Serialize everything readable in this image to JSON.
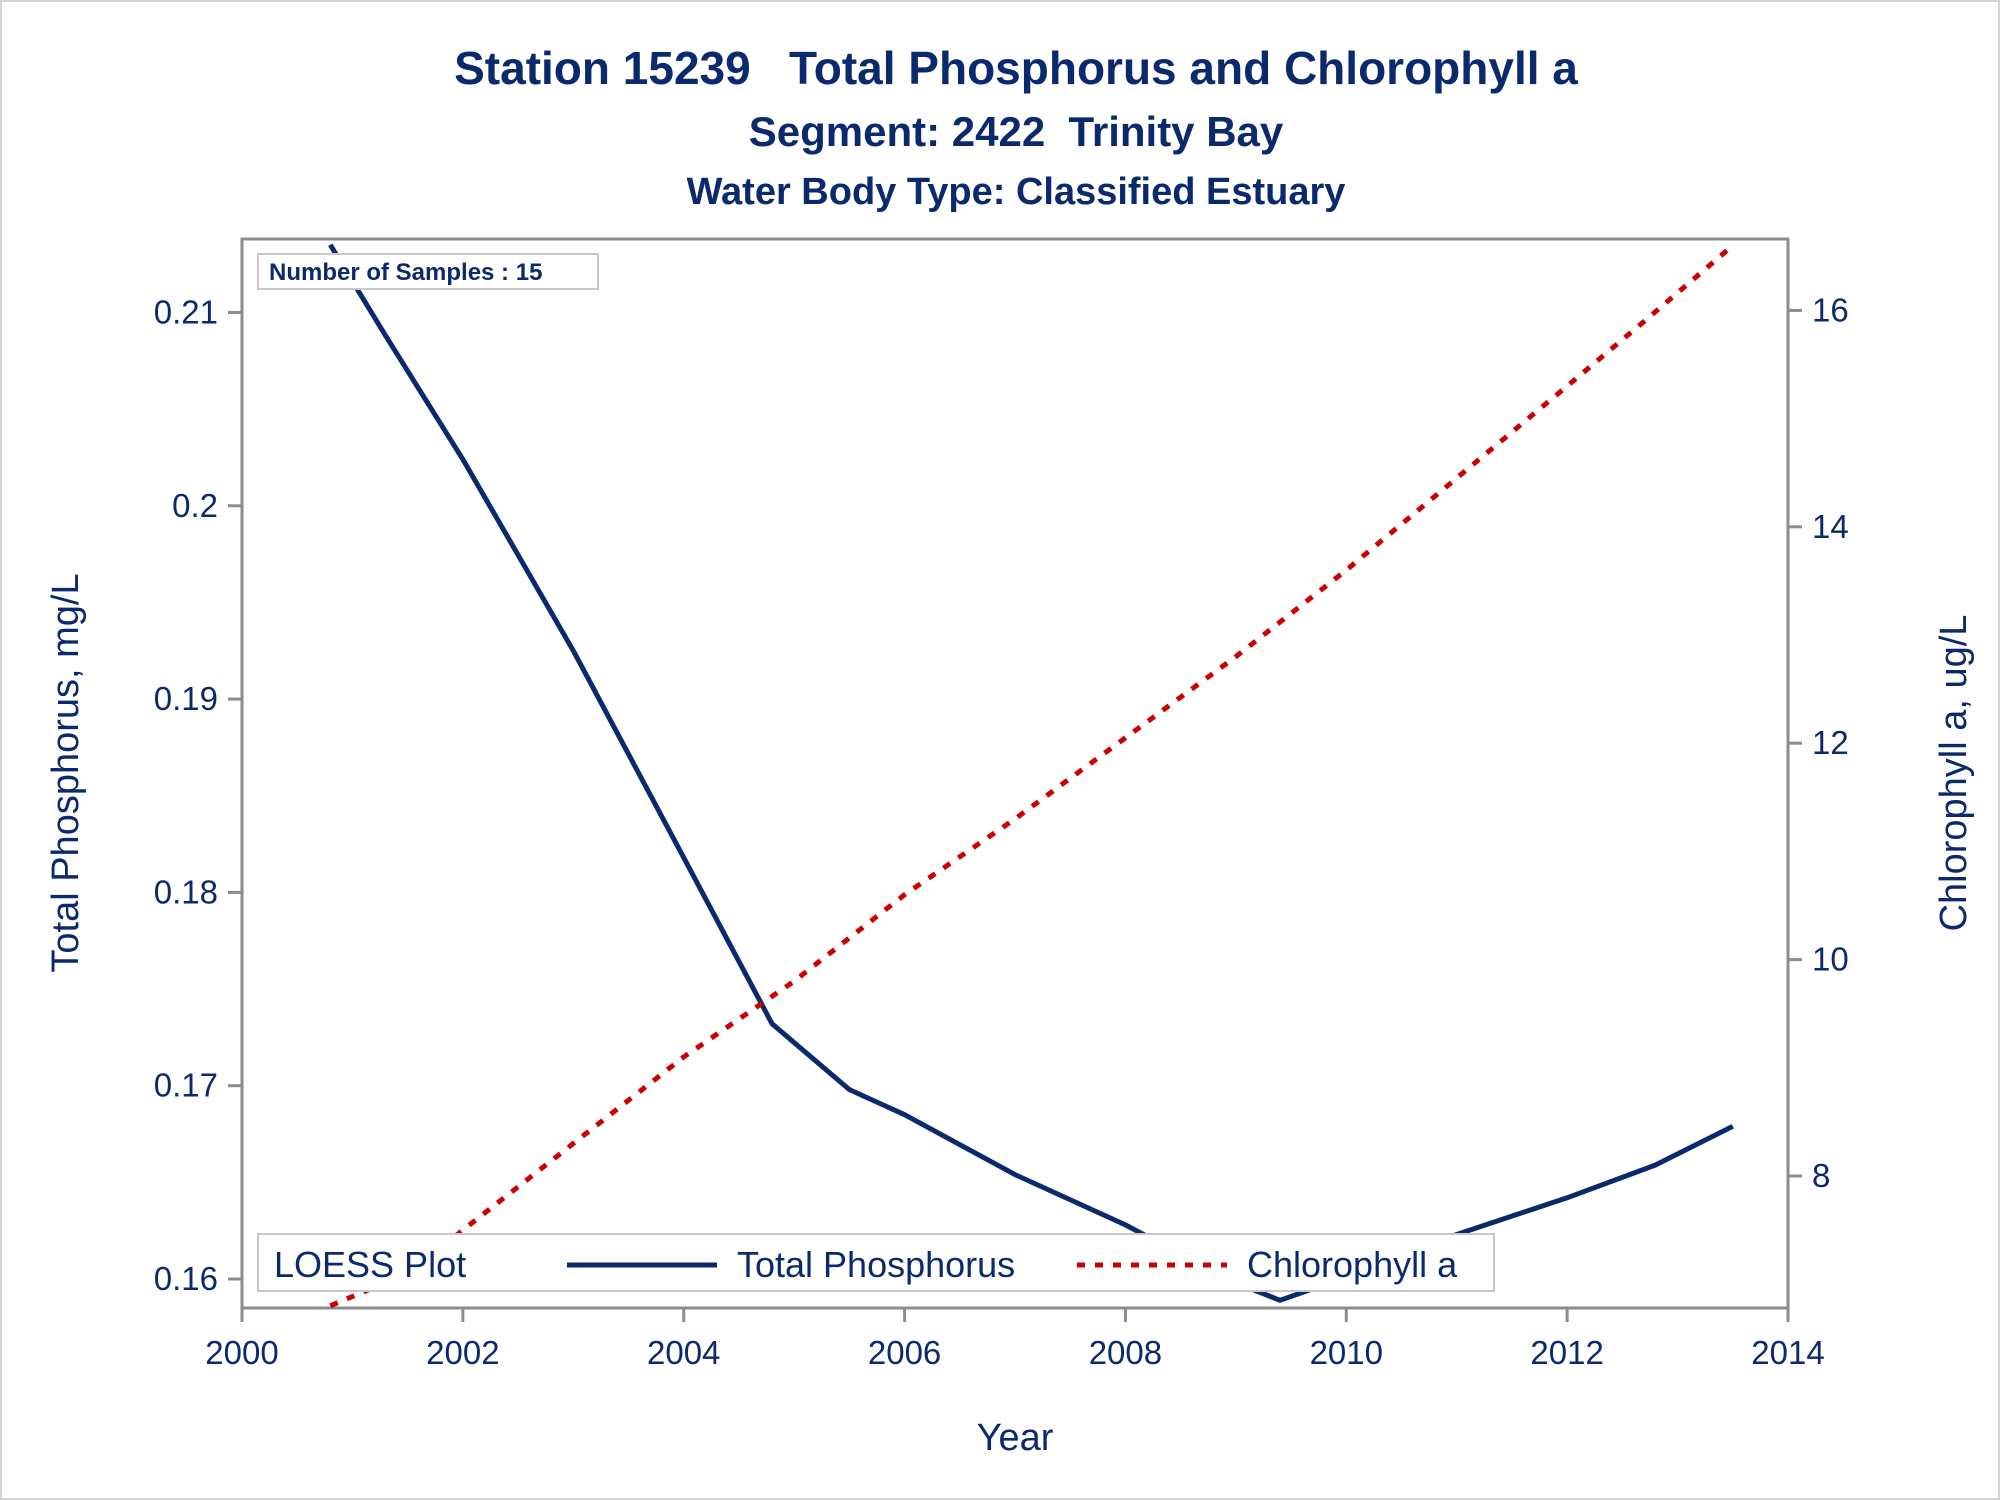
{
  "titles": {
    "line1": "Station 15239   Total Phosphorus and Chlorophyll a",
    "line2": "Segment: 2422  Trinity Bay",
    "line3": "Water Body Type: Classified Estuary"
  },
  "inset": {
    "samples_label": "Number of Samples : 15"
  },
  "legend": {
    "title": "LOESS Plot",
    "items": [
      "Total Phosphorus",
      "Chlorophyll a"
    ]
  },
  "colors": {
    "phosphorus": "#0b2a6e",
    "chlorophyll": "#cc0000",
    "frame": "#8c8c8c",
    "text": "#0b2a6e"
  },
  "chart_data": {
    "type": "line",
    "xlabel": "Year",
    "ylabel": "Total Phosphorus, mg/L",
    "y2label": "Chlorophyll a, ug/L",
    "xlim": [
      2000,
      2014
    ],
    "ylim": [
      0.1585,
      0.2138
    ],
    "y2lim": [
      6.78,
      16.66
    ],
    "xticks": [
      "2000",
      "2002",
      "2004",
      "2006",
      "2008",
      "2010",
      "2012",
      "2014"
    ],
    "yticks": [
      "0.16",
      "0.17",
      "0.18",
      "0.19",
      "0.2",
      "0.21"
    ],
    "y2ticks": [
      "8",
      "10",
      "12",
      "14",
      "16"
    ],
    "legend_position": "bottom-left-inside",
    "grid": false,
    "series": [
      {
        "name": "Total Phosphorus",
        "axis": "left",
        "style": "solid",
        "x": [
          2000.8,
          2001.3,
          2002.0,
          2003.0,
          2004.0,
          2004.8,
          2005.5,
          2006.0,
          2007.0,
          2008.0,
          2009.0,
          2009.4,
          2010.0,
          2011.0,
          2012.0,
          2012.8,
          2013.5
        ],
        "values": [
          0.2135,
          0.2088,
          0.2024,
          0.1925,
          0.1818,
          0.1732,
          0.1698,
          0.1685,
          0.1654,
          0.1628,
          0.1598,
          0.1589,
          0.1601,
          0.1623,
          0.1642,
          0.1659,
          0.1679
        ]
      },
      {
        "name": "Chlorophyll a",
        "axis": "right",
        "style": "dotted",
        "x": [
          2000.8,
          2001.5,
          2002.0,
          2003.0,
          2004.0,
          2005.0,
          2006.0,
          2007.0,
          2008.0,
          2009.0,
          2010.0,
          2011.0,
          2012.0,
          2012.7,
          2013.5
        ],
        "values": [
          6.8,
          7.1,
          7.5,
          8.3,
          9.1,
          9.8,
          10.6,
          11.3,
          12.05,
          12.8,
          13.6,
          14.45,
          15.3,
          15.9,
          16.6
        ]
      }
    ]
  }
}
